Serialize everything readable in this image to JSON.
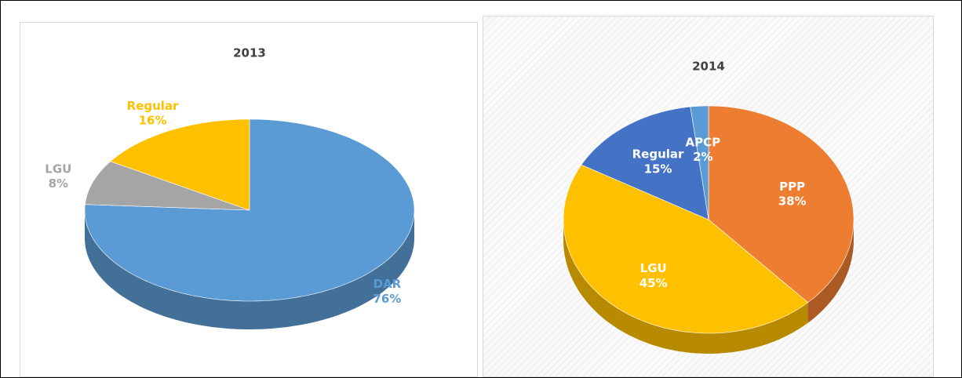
{
  "chart_data": [
    {
      "type": "pie",
      "title": "2013",
      "categories": [
        "DAR",
        "LGU",
        "Regular"
      ],
      "values": [
        76,
        8,
        16
      ],
      "value_labels": [
        "76%",
        "8%",
        "16%"
      ],
      "colors": [
        "#5b9bd5",
        "#a5a5a5",
        "#ffc000"
      ]
    },
    {
      "type": "pie",
      "title": "2014",
      "categories": [
        "PPP",
        "LGU",
        "Regular",
        "APCP"
      ],
      "values": [
        38,
        45,
        15,
        2
      ],
      "value_labels": [
        "38%",
        "45%",
        "15%",
        "2%"
      ],
      "colors": [
        "#ed7d31",
        "#ffc000",
        "#4472c4",
        "#5b9bd5"
      ]
    }
  ]
}
